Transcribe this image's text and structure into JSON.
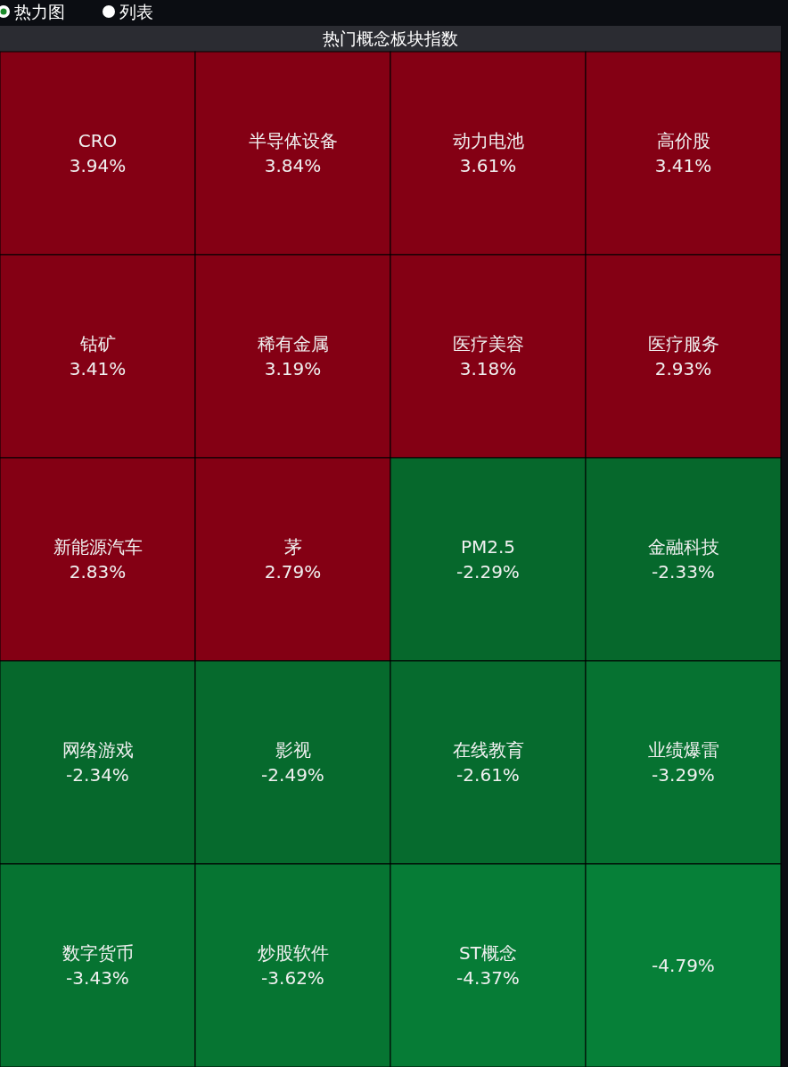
{
  "chart_data": {
    "type": "other",
    "title": "热门概念板块指数",
    "annotations": [
      "热力图",
      "列表"
    ],
    "categories": [
      "CRO",
      "半导体设备",
      "动力电池",
      "高价股",
      "钴矿",
      "稀有金属",
      "医疗美容",
      "医疗服务",
      "新能源汽车",
      "茅",
      "PM2.5",
      "金融科技",
      "网络游戏",
      "影视",
      "在线教育",
      "业绩爆雷",
      "数字货币",
      "炒股软件",
      "ST概念",
      null
    ],
    "values": [
      3.94,
      3.84,
      3.61,
      3.41,
      3.41,
      3.19,
      3.18,
      2.93,
      2.83,
      2.79,
      -2.29,
      -2.33,
      -2.34,
      -2.49,
      -2.61,
      -3.29,
      -3.43,
      -3.62,
      -4.37,
      -4.79
    ],
    "value_labels": [
      "3.94%",
      "3.84%",
      "3.61%",
      "3.41%",
      "3.41%",
      "3.19%",
      "3.18%",
      "2.93%",
      "2.83%",
      "2.79%",
      "-2.29%",
      "-2.33%",
      "-2.34%",
      "-2.49%",
      "-2.61%",
      "-3.29%",
      "-3.43%",
      "-3.62%",
      "-4.37%",
      "-4.79%"
    ]
  }
}
